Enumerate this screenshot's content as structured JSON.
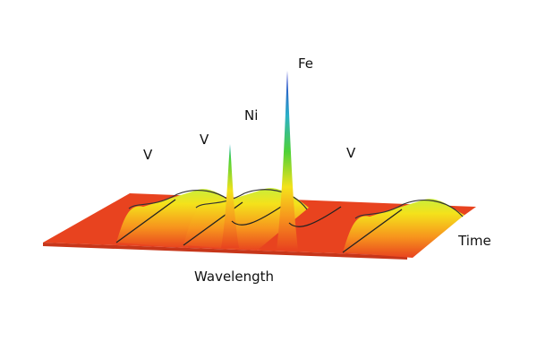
{
  "chart_data": {
    "type": "surface-3d",
    "title": "",
    "xlabel": "Wavelength",
    "ylabel": "Time",
    "grid": false,
    "legend": false,
    "peaks": [
      {
        "label": "V",
        "relative_height": 0.22,
        "shape": "broad"
      },
      {
        "label": "V",
        "relative_height": 0.24,
        "shape": "broad"
      },
      {
        "label": "Ni",
        "relative_height": 0.58,
        "shape": "narrow"
      },
      {
        "label": "Fe",
        "relative_height": 1.0,
        "shape": "narrow"
      },
      {
        "label": "V",
        "relative_height": 0.22,
        "shape": "broad"
      }
    ],
    "colors": {
      "base": "#E8431F",
      "low": "#F7941D",
      "mid": "#F4E21B",
      "midhigh": "#4CD137",
      "high": "#2BB0C9",
      "top": "#2A2FC8"
    }
  }
}
